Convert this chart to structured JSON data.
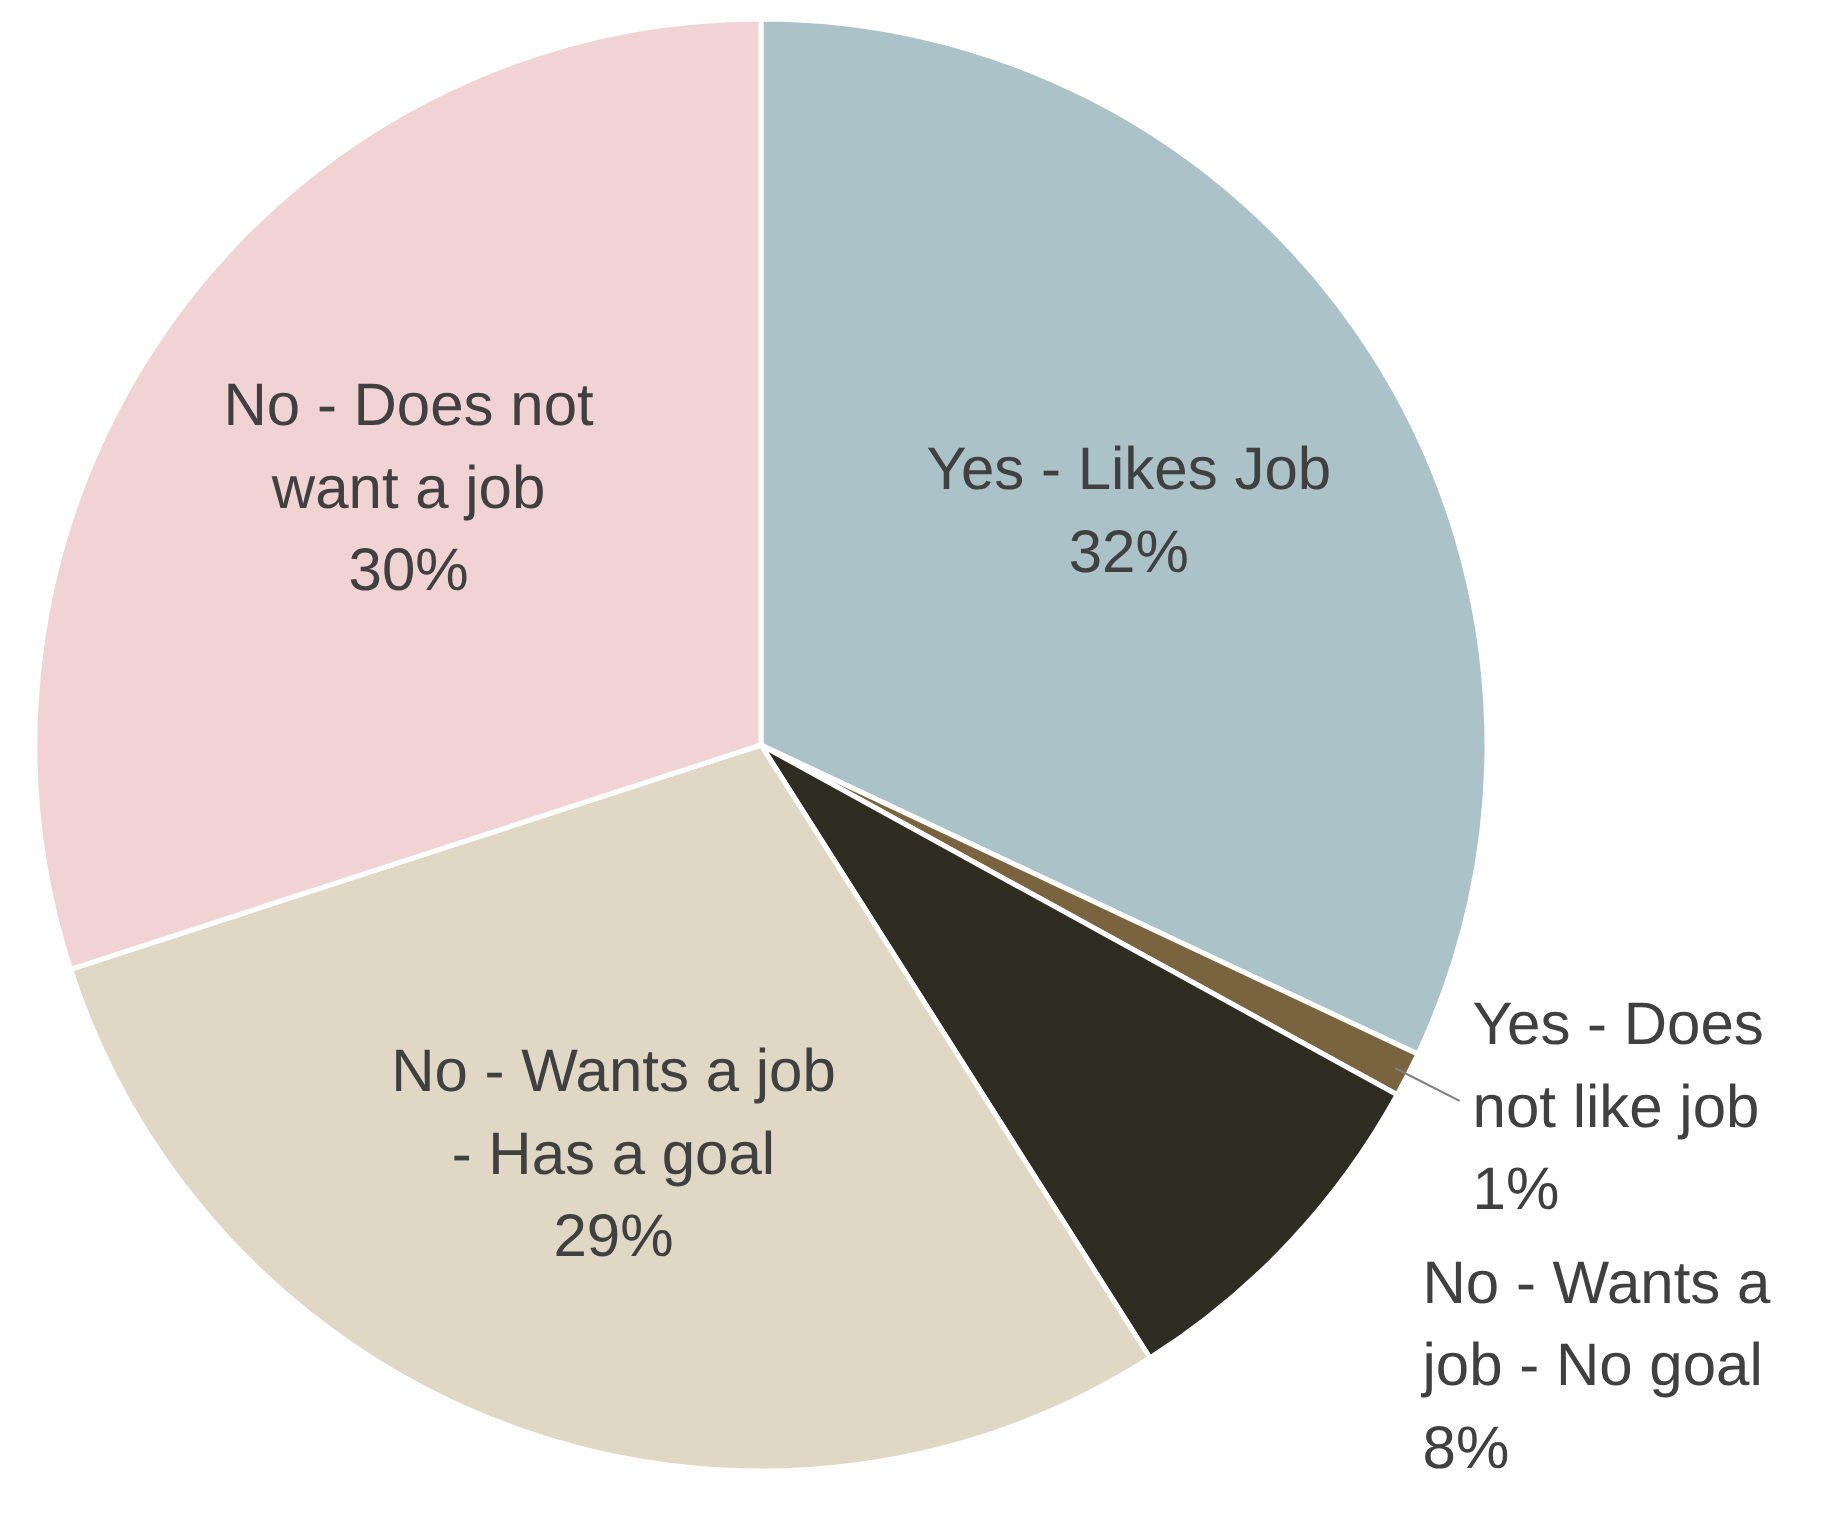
{
  "chart_data": {
    "type": "pie",
    "categories": [
      "Yes - Likes Job",
      "Yes - Does not like job",
      "No - Wants a job - No goal",
      "No - Wants a job - Has a goal",
      "No - Does not want a job"
    ],
    "values": [
      32,
      1,
      8,
      29,
      30
    ],
    "colors": [
      "#abc2c8",
      "#7a6440",
      "#2f2d22",
      "#e0d7c5",
      "#f2d3d4"
    ],
    "value_labels": [
      "32%",
      "1%",
      "8%",
      "29%",
      "30%"
    ]
  }
}
